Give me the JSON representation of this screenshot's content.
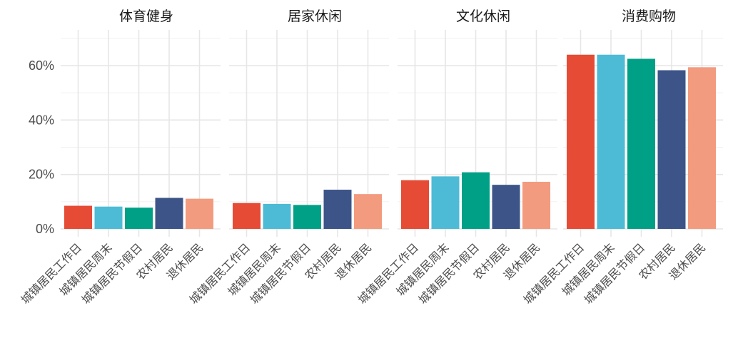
{
  "chart_data": {
    "type": "bar",
    "facets": [
      "体育健身",
      "居家休闲",
      "文化休闲",
      "消费购物"
    ],
    "categories": [
      "城镇居民工作日",
      "城镇居民周末",
      "城镇居民节假日",
      "农村居民",
      "退休居民"
    ],
    "values": [
      [
        8.5,
        8.2,
        7.8,
        11.4,
        11.1
      ],
      [
        9.5,
        9.2,
        8.8,
        14.4,
        12.8
      ],
      [
        17.9,
        19.3,
        20.8,
        16.2,
        17.3
      ],
      [
        64.0,
        64.0,
        62.5,
        58.3,
        59.4
      ]
    ],
    "colors": [
      "#E64B35",
      "#4DBBD5",
      "#00A087",
      "#3C5488",
      "#F39B7F"
    ],
    "y_ticks": [
      0,
      20,
      40,
      60
    ],
    "y_tick_labels": [
      "0%",
      "20%",
      "40%",
      "60%"
    ],
    "ylim": [
      0,
      70
    ],
    "grid": true,
    "legend": "none"
  }
}
